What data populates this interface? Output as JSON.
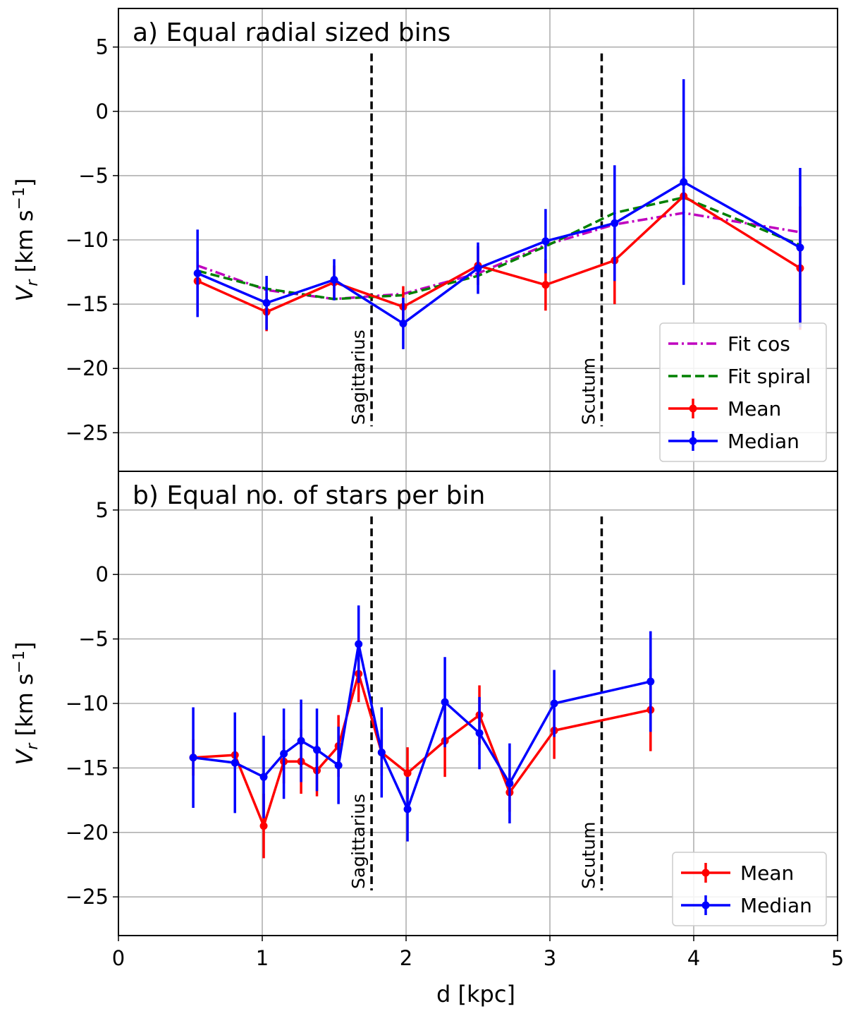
{
  "figure": {
    "xlabel": "d [kpc]",
    "xlim": [
      0,
      5
    ],
    "xticks": [
      0,
      1,
      2,
      3,
      4,
      5
    ],
    "colors": {
      "mean": "#ff0000",
      "median": "#0000ff",
      "fit_cos": "#bf00bf",
      "fit_spiral": "#008000",
      "arms": "#000000"
    }
  },
  "chart_data": [
    {
      "type": "line",
      "title": "a) Equal radial sized bins",
      "xlabel": "d [kpc]",
      "ylabel": "Vr [km s-1]",
      "xlim": [
        0,
        5
      ],
      "ylim": [
        -28,
        8
      ],
      "yticks": [
        5,
        0,
        -5,
        -10,
        -15,
        -20,
        -25
      ],
      "grid": true,
      "legend_position": "bottom-right",
      "arms": [
        {
          "label": "Sagittarius",
          "x": 1.76,
          "y_range": [
            -24.5,
            4.5
          ]
        },
        {
          "label": "Scutum",
          "x": 3.36,
          "y_range": [
            -24.5,
            4.5
          ]
        }
      ],
      "series": [
        {
          "name": "Fit cos",
          "style": "dashdot",
          "color": "#bf00bf",
          "x": [
            0.55,
            1.03,
            1.5,
            1.98,
            2.5,
            2.97,
            3.45,
            3.93,
            4.74
          ],
          "y": [
            -12.0,
            -13.9,
            -14.6,
            -14.2,
            -12.6,
            -10.4,
            -8.8,
            -7.9,
            -9.4
          ]
        },
        {
          "name": "Fit spiral",
          "style": "dashed",
          "color": "#008000",
          "x": [
            0.55,
            1.03,
            1.5,
            1.98,
            2.5,
            2.97,
            3.45,
            3.93,
            4.74
          ],
          "y": [
            -12.4,
            -13.8,
            -14.6,
            -14.3,
            -12.8,
            -10.5,
            -7.9,
            -6.7,
            -10.4
          ]
        },
        {
          "name": "Mean",
          "style": "errorbar",
          "color": "#ff0000",
          "x": [
            0.55,
            1.03,
            1.5,
            1.98,
            2.5,
            2.97,
            3.45,
            3.93,
            4.74
          ],
          "y": [
            -13.2,
            -15.6,
            -13.3,
            -15.2,
            -12.0,
            -13.5,
            -11.6,
            -6.6,
            -12.2
          ],
          "err": [
            2.3,
            1.5,
            1.3,
            1.6,
            1.5,
            2.0,
            3.4,
            2.3,
            4.8
          ]
        },
        {
          "name": "Median",
          "style": "errorbar",
          "color": "#0000ff",
          "x": [
            0.55,
            1.03,
            1.5,
            1.98,
            2.5,
            2.97,
            3.45,
            3.93,
            4.74
          ],
          "y": [
            -12.6,
            -14.9,
            -13.1,
            -16.5,
            -12.2,
            -10.1,
            -8.7,
            -5.5,
            -10.6
          ],
          "err": [
            3.4,
            2.1,
            1.6,
            2.0,
            2.0,
            2.5,
            4.5,
            8.0,
            6.2
          ]
        }
      ]
    },
    {
      "type": "line",
      "title": "b) Equal no. of stars per bin",
      "xlabel": "d [kpc]",
      "ylabel": "Vr [km s-1]",
      "xlim": [
        0,
        5
      ],
      "ylim": [
        -28,
        8
      ],
      "yticks": [
        5,
        0,
        -5,
        -10,
        -15,
        -20,
        -25
      ],
      "grid": true,
      "legend_position": "bottom-right",
      "arms": [
        {
          "label": "Sagittarius",
          "x": 1.76,
          "y_range": [
            -24.5,
            4.5
          ]
        },
        {
          "label": "Scutum",
          "x": 3.36,
          "y_range": [
            -24.5,
            4.5
          ]
        }
      ],
      "series": [
        {
          "name": "Mean",
          "style": "errorbar",
          "color": "#ff0000",
          "x": [
            0.52,
            0.81,
            1.01,
            1.15,
            1.27,
            1.38,
            1.53,
            1.67,
            1.83,
            2.01,
            2.27,
            2.51,
            2.72,
            3.03,
            3.7
          ],
          "y": [
            -14.2,
            -14.0,
            -19.5,
            -14.5,
            -14.5,
            -15.2,
            -13.3,
            -7.7,
            -13.8,
            -15.4,
            -12.9,
            -10.9,
            -16.9,
            -12.1,
            -10.5
          ],
          "err": [
            1.4,
            1.3,
            2.5,
            1.7,
            2.5,
            2.0,
            2.4,
            2.2,
            1.8,
            2.0,
            2.8,
            2.3,
            1.5,
            2.2,
            3.2
          ]
        },
        {
          "name": "Median",
          "style": "errorbar",
          "color": "#0000ff",
          "x": [
            0.52,
            0.81,
            1.01,
            1.15,
            1.27,
            1.38,
            1.53,
            1.67,
            1.83,
            2.01,
            2.27,
            2.51,
            2.72,
            3.03,
            3.7
          ],
          "y": [
            -14.2,
            -14.6,
            -15.7,
            -13.9,
            -12.9,
            -13.6,
            -14.8,
            -5.4,
            -13.8,
            -18.2,
            -9.9,
            -12.3,
            -16.2,
            -10.0,
            -8.3
          ],
          "err": [
            3.9,
            3.9,
            3.2,
            3.5,
            3.2,
            3.2,
            3.0,
            3.0,
            3.5,
            2.5,
            3.5,
            2.8,
            3.1,
            2.6,
            3.9
          ]
        }
      ]
    }
  ]
}
